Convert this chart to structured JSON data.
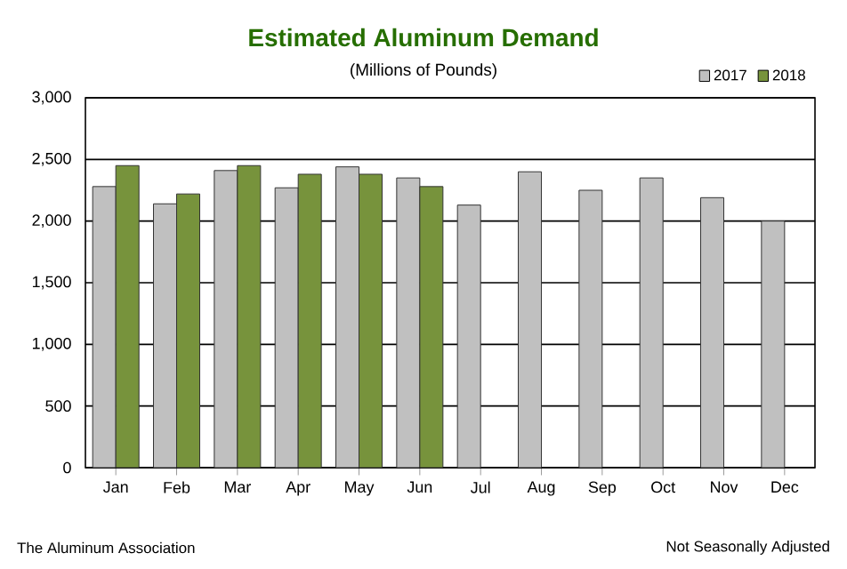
{
  "chart_data": {
    "type": "bar",
    "title": "Estimated Aluminum Demand",
    "subtitle": "(Millions of Pounds)",
    "categories": [
      "Jan",
      "Feb",
      "Mar",
      "Apr",
      "May",
      "Jun",
      "Jul",
      "Aug",
      "Sep",
      "Oct",
      "Nov",
      "Dec"
    ],
    "series": [
      {
        "name": "2017",
        "color": "#c0c0c0",
        "values": [
          2280,
          2140,
          2410,
          2270,
          2440,
          2350,
          2130,
          2400,
          2250,
          2350,
          2190,
          2000
        ]
      },
      {
        "name": "2018",
        "color": "#77933c",
        "values": [
          2450,
          2220,
          2450,
          2380,
          2380,
          2280,
          null,
          null,
          null,
          null,
          null,
          null
        ]
      }
    ],
    "ylim": [
      0,
      3000
    ],
    "yticks": [
      {
        "value": 0,
        "label": "0"
      },
      {
        "value": 500,
        "label": "500"
      },
      {
        "value": 1000,
        "label": "1,000"
      },
      {
        "value": 1500,
        "label": "1,500"
      },
      {
        "value": 2000,
        "label": "2,000"
      },
      {
        "value": 2500,
        "label": "2,500"
      },
      {
        "value": 3000,
        "label": "3,000"
      }
    ],
    "grid": "y",
    "legend": "top right",
    "annotations": [
      "The Aluminum Association",
      "Not Seasonally Adjusted"
    ]
  }
}
